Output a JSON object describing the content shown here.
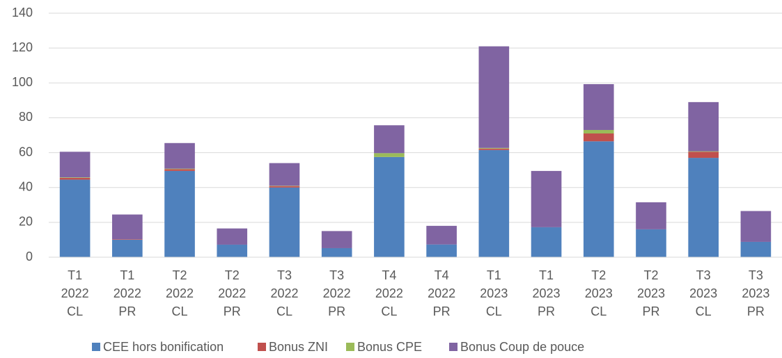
{
  "chart_data": {
    "type": "bar",
    "stacked": true,
    "categories": [
      [
        "T1",
        "2022",
        "CL"
      ],
      [
        "T1",
        "2022",
        "PR"
      ],
      [
        "T2",
        "2022",
        "CL"
      ],
      [
        "T2",
        "2022",
        "PR"
      ],
      [
        "T3",
        "2022",
        "CL"
      ],
      [
        "T3",
        "2022",
        "PR"
      ],
      [
        "T4",
        "2022",
        "CL"
      ],
      [
        "T4",
        "2022",
        "PR"
      ],
      [
        "T1",
        "2023",
        "CL"
      ],
      [
        "T1",
        "2023",
        "PR"
      ],
      [
        "T2",
        "2023",
        "CL"
      ],
      [
        "T2",
        "2023",
        "PR"
      ],
      [
        "T3",
        "2023",
        "CL"
      ],
      [
        "T3",
        "2023",
        "PR"
      ]
    ],
    "series": [
      {
        "name": "CEE hors bonification",
        "color": "#4f81bd",
        "values": [
          44.5,
          10,
          49.5,
          7.2,
          40,
          5.2,
          57.5,
          7.3,
          61.5,
          17.2,
          66.5,
          16,
          57,
          8.8
        ]
      },
      {
        "name": "Bonus ZNI",
        "color": "#c0504d",
        "values": [
          1,
          0.3,
          1,
          0,
          0.8,
          0,
          0,
          0,
          0.8,
          0,
          4.5,
          0,
          3.5,
          0
        ]
      },
      {
        "name": "Bonus CPE",
        "color": "#9bbb59",
        "values": [
          0.3,
          0,
          0.3,
          0,
          0.2,
          0,
          2.2,
          0,
          0.4,
          0,
          2,
          0,
          0.3,
          0
        ]
      },
      {
        "name": "Bonus Coup de pouce",
        "color": "#8064a2",
        "values": [
          14.7,
          14.2,
          14.7,
          9.3,
          13,
          9.8,
          16,
          10.7,
          58.3,
          32.3,
          26.3,
          15.5,
          28.2,
          17.7
        ]
      }
    ],
    "ylim": [
      0,
      140
    ],
    "yticks": [
      0,
      20,
      40,
      60,
      80,
      100,
      120,
      140
    ],
    "grid": true,
    "legend": "bottom"
  }
}
